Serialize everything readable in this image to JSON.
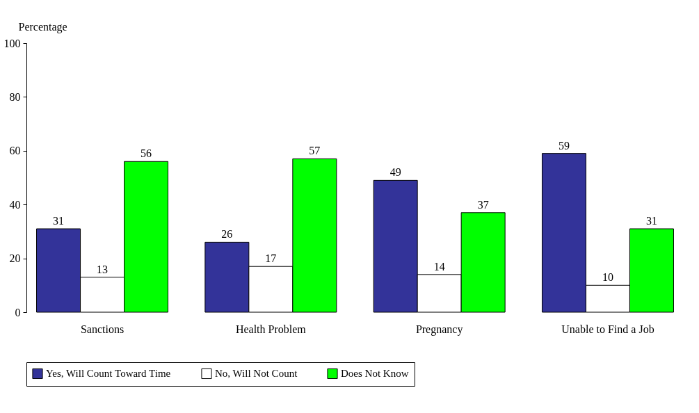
{
  "chart_data": {
    "type": "bar",
    "ylabel": "Percentage",
    "categories": [
      "Sanctions",
      "Health Problem",
      "Pregnancy",
      "Unable to Find a Job"
    ],
    "series": [
      {
        "name": "Yes, Will Count Toward Time",
        "color": "#333399",
        "values": [
          31,
          26,
          49,
          59
        ]
      },
      {
        "name": "No, Will Not Count",
        "color": "#ffffff",
        "values": [
          13,
          17,
          14,
          10
        ]
      },
      {
        "name": "Does Not Know",
        "color": "#00ff00",
        "values": [
          56,
          57,
          37,
          31
        ]
      }
    ],
    "ylim": [
      0,
      100
    ],
    "yticks": [
      0,
      20,
      40,
      60,
      80,
      100
    ],
    "data_labels": true,
    "grid": false,
    "legend": "bottom"
  }
}
